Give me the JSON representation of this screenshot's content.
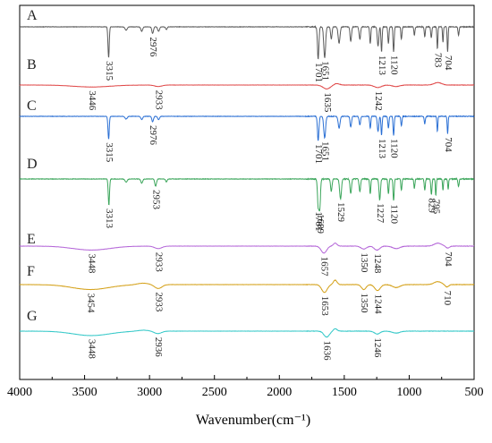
{
  "chart_data": {
    "type": "line",
    "xlabel": "Wavenumber(cm⁻¹)",
    "ylabel": "",
    "xlim": [
      4000,
      500
    ],
    "x_reversed": true,
    "grid": false,
    "legend": "inline letters",
    "x_ticks": [
      "4000",
      "3500",
      "3000",
      "2500",
      "2000",
      "1500",
      "1000",
      "500"
    ],
    "series": [
      {
        "name": "A",
        "color": "#5a5a5a",
        "baseline": 0,
        "smooth_noise": 0.6,
        "features": [
          [
            3315,
            7,
            55
          ],
          [
            3180,
            12,
            6
          ],
          [
            3060,
            10,
            8
          ],
          [
            2976,
            9,
            12
          ],
          [
            2930,
            10,
            8
          ],
          [
            2870,
            8,
            5
          ],
          [
            1701,
            8,
            58
          ],
          [
            1651,
            10,
            55
          ],
          [
            1600,
            8,
            22
          ],
          [
            1540,
            10,
            30
          ],
          [
            1450,
            8,
            26
          ],
          [
            1380,
            8,
            22
          ],
          [
            1300,
            6,
            30
          ],
          [
            1240,
            8,
            35
          ],
          [
            1213,
            6,
            45
          ],
          [
            1160,
            6,
            30
          ],
          [
            1120,
            6,
            45
          ],
          [
            1060,
            6,
            22
          ],
          [
            960,
            6,
            15
          ],
          [
            880,
            6,
            18
          ],
          [
            830,
            6,
            20
          ],
          [
            783,
            5,
            40
          ],
          [
            740,
            5,
            28
          ],
          [
            704,
            5,
            45
          ],
          [
            620,
            6,
            15
          ]
        ],
        "peaks": [
          {
            "x": 3315,
            "label": "3315"
          },
          {
            "x": 2976,
            "label": "2976"
          },
          {
            "x": 1701,
            "label": "1701"
          },
          {
            "x": 1651,
            "label": "1651"
          },
          {
            "x": 1213,
            "label": "1213"
          },
          {
            "x": 1120,
            "label": "1120"
          },
          {
            "x": 783,
            "label": "783"
          },
          {
            "x": 704,
            "label": "704"
          }
        ]
      },
      {
        "name": "B",
        "color": "#e04a4a",
        "baseline": 0,
        "smooth_noise": 0.3,
        "features": [
          [
            3446,
            200,
            4
          ],
          [
            2933,
            40,
            3
          ],
          [
            1635,
            40,
            8
          ],
          [
            1242,
            40,
            5
          ],
          [
            1100,
            40,
            3
          ]
        ],
        "bumps": [
          [
            780,
            40,
            5
          ],
          [
            1560,
            30,
            3
          ]
        ],
        "peaks": [
          {
            "x": 3446,
            "label": "3446"
          },
          {
            "x": 2933,
            "label": "2933"
          },
          {
            "x": 1635,
            "label": "1635"
          },
          {
            "x": 1242,
            "label": "1242"
          }
        ]
      },
      {
        "name": "C",
        "color": "#2a6fd4",
        "baseline": 0,
        "smooth_noise": 0.6,
        "features": [
          [
            3315,
            7,
            42
          ],
          [
            3180,
            12,
            5
          ],
          [
            3060,
            10,
            6
          ],
          [
            2976,
            9,
            10
          ],
          [
            2930,
            10,
            6
          ],
          [
            1701,
            8,
            45
          ],
          [
            1651,
            10,
            40
          ],
          [
            1540,
            10,
            22
          ],
          [
            1450,
            8,
            20
          ],
          [
            1380,
            8,
            16
          ],
          [
            1300,
            6,
            22
          ],
          [
            1240,
            8,
            28
          ],
          [
            1213,
            6,
            35
          ],
          [
            1160,
            6,
            22
          ],
          [
            1120,
            6,
            35
          ],
          [
            1060,
            6,
            18
          ],
          [
            880,
            6,
            14
          ],
          [
            783,
            5,
            28
          ],
          [
            704,
            5,
            32
          ]
        ],
        "peaks": [
          {
            "x": 3315,
            "label": "3315"
          },
          {
            "x": 2976,
            "label": "2976"
          },
          {
            "x": 1701,
            "label": "1701"
          },
          {
            "x": 1651,
            "label": "1651"
          },
          {
            "x": 1213,
            "label": "1213"
          },
          {
            "x": 1120,
            "label": "1120"
          },
          {
            "x": 704,
            "label": "704"
          }
        ]
      },
      {
        "name": "D",
        "color": "#3aa55a",
        "baseline": 0,
        "smooth_noise": 0.8,
        "features": [
          [
            3313,
            7,
            50
          ],
          [
            3180,
            12,
            6
          ],
          [
            3060,
            10,
            8
          ],
          [
            2953,
            9,
            14
          ],
          [
            2870,
            8,
            6
          ],
          [
            1701,
            8,
            50
          ],
          [
            1689,
            8,
            55
          ],
          [
            1600,
            8,
            24
          ],
          [
            1529,
            10,
            38
          ],
          [
            1450,
            8,
            28
          ],
          [
            1380,
            8,
            24
          ],
          [
            1300,
            6,
            28
          ],
          [
            1227,
            8,
            40
          ],
          [
            1160,
            6,
            28
          ],
          [
            1120,
            6,
            42
          ],
          [
            1060,
            6,
            22
          ],
          [
            960,
            6,
            18
          ],
          [
            880,
            6,
            22
          ],
          [
            829,
            6,
            30
          ],
          [
            795,
            5,
            32
          ],
          [
            740,
            5,
            22
          ],
          [
            700,
            5,
            20
          ],
          [
            620,
            6,
            15
          ]
        ],
        "peaks": [
          {
            "x": 3313,
            "label": "3313"
          },
          {
            "x": 2953,
            "label": "2953"
          },
          {
            "x": 1701,
            "label": "1701"
          },
          {
            "x": 1689,
            "label": "1689"
          },
          {
            "x": 1529,
            "label": "1529"
          },
          {
            "x": 1227,
            "label": "1227"
          },
          {
            "x": 1120,
            "label": "1120"
          },
          {
            "x": 829,
            "label": "829"
          },
          {
            "x": 795,
            "label": "795"
          }
        ]
      },
      {
        "name": "E",
        "color": "#b466d8",
        "baseline": 0,
        "smooth_noise": 0.3,
        "features": [
          [
            3448,
            200,
            8
          ],
          [
            2933,
            40,
            5
          ],
          [
            1657,
            30,
            14
          ],
          [
            1350,
            30,
            6
          ],
          [
            1248,
            30,
            8
          ],
          [
            1100,
            40,
            5
          ],
          [
            704,
            20,
            4
          ]
        ],
        "bumps": [
          [
            1570,
            20,
            6
          ],
          [
            780,
            40,
            6
          ]
        ],
        "peaks": [
          {
            "x": 3448,
            "label": "3448"
          },
          {
            "x": 2933,
            "label": "2933"
          },
          {
            "x": 1657,
            "label": "1657"
          },
          {
            "x": 1350,
            "label": "1350"
          },
          {
            "x": 1248,
            "label": "1248"
          },
          {
            "x": 704,
            "label": "704"
          }
        ]
      },
      {
        "name": "F",
        "color": "#d4a017",
        "baseline": 0,
        "smooth_noise": 0.3,
        "features": [
          [
            3454,
            200,
            10
          ],
          [
            2933,
            40,
            8
          ],
          [
            1653,
            30,
            16
          ],
          [
            1350,
            25,
            10
          ],
          [
            1244,
            30,
            12
          ],
          [
            1100,
            40,
            6
          ],
          [
            710,
            20,
            5
          ]
        ],
        "bumps": [
          [
            1570,
            20,
            9
          ],
          [
            780,
            40,
            6
          ],
          [
            3050,
            60,
            3
          ]
        ],
        "peaks": [
          {
            "x": 3454,
            "label": "3454"
          },
          {
            "x": 2933,
            "label": "2933"
          },
          {
            "x": 1653,
            "label": "1653"
          },
          {
            "x": 1350,
            "label": "1350"
          },
          {
            "x": 1244,
            "label": "1244"
          },
          {
            "x": 710,
            "label": "710"
          }
        ]
      },
      {
        "name": "G",
        "color": "#34c8c8",
        "baseline": 0,
        "smooth_noise": 0.3,
        "features": [
          [
            3448,
            200,
            9
          ],
          [
            2936,
            40,
            5
          ],
          [
            1636,
            30,
            12
          ],
          [
            1246,
            30,
            6
          ],
          [
            1100,
            40,
            4
          ]
        ],
        "bumps": [
          [
            1570,
            20,
            5
          ],
          [
            3050,
            60,
            2
          ]
        ],
        "peaks": [
          {
            "x": 3448,
            "label": "3448"
          },
          {
            "x": 2936,
            "label": "2936"
          },
          {
            "x": 1636,
            "label": "1636"
          },
          {
            "x": 1246,
            "label": "1246"
          }
        ]
      }
    ]
  }
}
